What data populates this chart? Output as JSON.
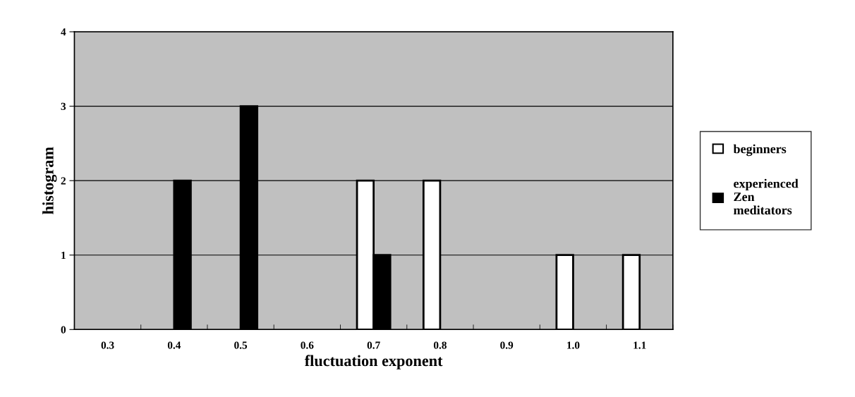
{
  "chart_data": {
    "type": "bar",
    "xlabel": "fluctuation exponent",
    "ylabel": "histogram",
    "categories": [
      "0.3",
      "0.4",
      "0.5",
      "0.6",
      "0.7",
      "0.8",
      "0.9",
      "1.0",
      "1.1"
    ],
    "series": [
      {
        "name": "beginners",
        "color": "#ffffff",
        "values": [
          null,
          null,
          null,
          null,
          2,
          2,
          null,
          1,
          1
        ]
      },
      {
        "name": "experienced Zen meditators",
        "color": "#000000",
        "values": [
          null,
          2,
          3,
          null,
          1,
          null,
          null,
          null,
          null
        ]
      }
    ],
    "ylim": [
      0,
      4
    ],
    "yticks": [
      0,
      1,
      2,
      3,
      4
    ],
    "grid": "y",
    "legend": "right"
  }
}
